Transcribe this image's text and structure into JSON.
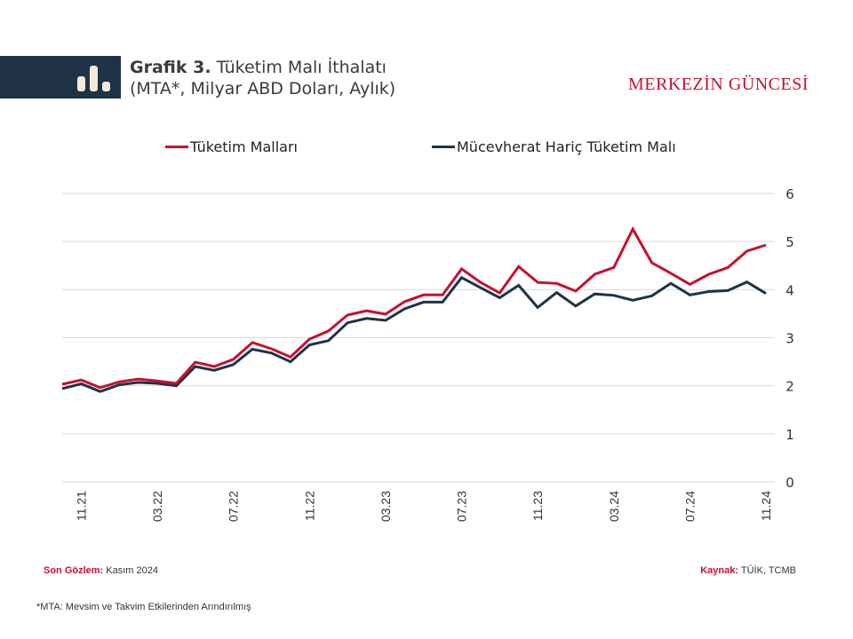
{
  "header": {
    "title_bold": "Grafik 3.",
    "title_rest": " Tüketim Malı İthalatı",
    "subtitle": "(MTA*, Milyar ABD Doları, Aylık)",
    "brand": "MERKEZİN GÜNCESİ",
    "icon": "bar-chart-icon"
  },
  "colors": {
    "header_bar": "#1f3247",
    "series_red": "#c8102e",
    "series_dark": "#1f3247",
    "brand": "#c8102e"
  },
  "chart_data": {
    "type": "line",
    "title": "Tüketim Malı İthalatı (MTA*, Milyar ABD Doları, Aylık)",
    "xlabel": "",
    "ylabel": "",
    "ylim": [
      0,
      6
    ],
    "yticks": [
      0,
      1,
      2,
      3,
      4,
      5,
      6
    ],
    "ytick_labels": [
      "0",
      "1",
      "2",
      "3",
      "4",
      "5",
      "6"
    ],
    "y_axis_side": "right",
    "grid": true,
    "legend_position": "top",
    "x": [
      "10.21",
      "11.21",
      "12.21",
      "01.22",
      "02.22",
      "03.22",
      "04.22",
      "05.22",
      "06.22",
      "07.22",
      "08.22",
      "09.22",
      "10.22",
      "11.22",
      "12.22",
      "01.23",
      "02.23",
      "03.23",
      "04.23",
      "05.23",
      "06.23",
      "07.23",
      "08.23",
      "09.23",
      "10.23",
      "11.23",
      "12.23",
      "01.24",
      "02.24",
      "03.24",
      "04.24",
      "05.24",
      "06.24",
      "07.24",
      "08.24",
      "09.24",
      "10.24",
      "11.24"
    ],
    "xtick_labels": [
      "11.21",
      "03.22",
      "07.22",
      "11.22",
      "03.23",
      "07.23",
      "11.23",
      "03.24",
      "07.24",
      "11.24"
    ],
    "series": [
      {
        "name": "Tüketim Malları",
        "color": "#c8102e",
        "values": [
          2.03,
          2.12,
          1.96,
          2.08,
          2.14,
          2.1,
          2.05,
          2.49,
          2.4,
          2.55,
          2.9,
          2.77,
          2.6,
          2.97,
          3.14,
          3.47,
          3.56,
          3.49,
          3.75,
          3.89,
          3.89,
          4.43,
          4.15,
          3.93,
          4.48,
          4.15,
          4.13,
          3.97,
          4.32,
          4.46,
          5.26,
          4.56,
          4.34,
          4.11,
          4.32,
          4.46,
          4.8,
          4.93
        ]
      },
      {
        "name": "Mücevherat Hariç Tüketim Malı",
        "color": "#1f3247",
        "values": [
          1.94,
          2.04,
          1.88,
          2.02,
          2.07,
          2.05,
          2.0,
          2.4,
          2.32,
          2.44,
          2.76,
          2.68,
          2.5,
          2.85,
          2.94,
          3.31,
          3.4,
          3.36,
          3.6,
          3.74,
          3.74,
          4.25,
          4.04,
          3.83,
          4.09,
          3.63,
          3.94,
          3.66,
          3.91,
          3.88,
          3.78,
          3.87,
          4.13,
          3.89,
          3.96,
          3.98,
          4.16,
          3.92
        ]
      }
    ]
  },
  "footer": {
    "last_obs_label": "Son Gözlem:",
    "last_obs_value": " Kasım 2024",
    "source_label": "Kaynak:",
    "source_value": " TÜİK, TCMB",
    "note": "*MTA: Mevsim ve Takvim Etkilerinden Arındırılmış"
  }
}
